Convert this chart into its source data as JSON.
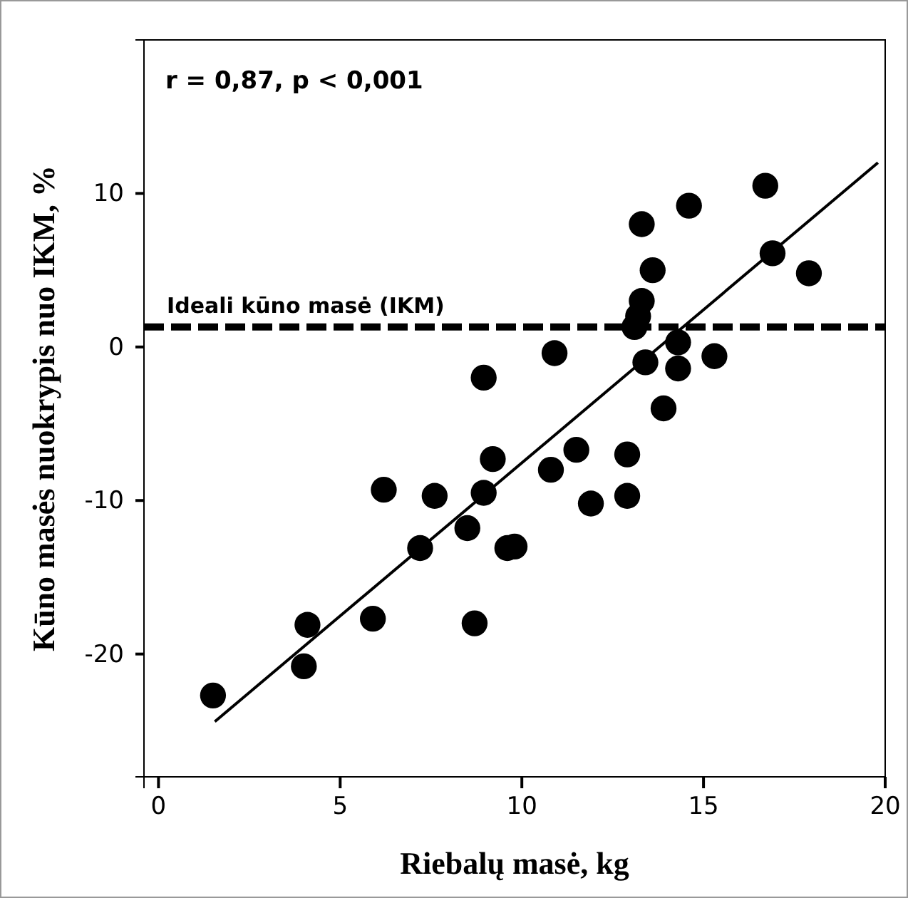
{
  "chart_data": {
    "type": "scatter",
    "xlabel": "Riebalų masė, kg",
    "ylabel": "Kūno masės nuokrypis nuo IKM, %",
    "annotations": [
      "r = 0,87, p < 0,001"
    ],
    "xlim": [
      -0.4,
      20
    ],
    "ylim": [
      -28,
      20
    ],
    "xticks": [
      0,
      5,
      10,
      15,
      20
    ],
    "yticks": [
      -20,
      -10,
      0,
      10
    ],
    "grid": false,
    "ref_lines": [
      {
        "axis": "y",
        "value": 1.3,
        "label": "Ideali kūno masė (IKM)",
        "color": "#000000",
        "line_style": "dashed"
      }
    ],
    "series": [
      {
        "color": "#000000",
        "marker": "circle",
        "x": [
          1.5,
          4.0,
          4.1,
          5.9,
          6.2,
          7.2,
          7.6,
          8.5,
          8.7,
          8.95,
          8.95,
          9.2,
          9.6,
          9.8,
          10.8,
          10.9,
          11.5,
          11.9,
          12.9,
          12.9,
          13.3,
          13.6,
          13.3,
          13.1,
          13.2,
          13.4,
          13.9,
          14.3,
          14.3,
          14.6,
          15.3,
          16.7,
          16.9,
          17.9
        ],
        "values": [
          -22.7,
          -20.8,
          -18.1,
          -17.7,
          -9.3,
          -13.1,
          -9.7,
          -11.8,
          -18,
          -9.5,
          -2.0,
          -7.3,
          -13.1,
          -13,
          -8.0,
          -0.4,
          -6.7,
          -10.2,
          -7.0,
          -9.7,
          8.0,
          5.0,
          3.0,
          1.3,
          2.0,
          -1.0,
          -4.0,
          0.3,
          -1.4,
          9.2,
          -0.6,
          10.5,
          6.1,
          4.8
        ]
      },
      {
        "type": "line",
        "color": "#000000",
        "marker": "none",
        "x": [
          1.55,
          19.8
        ],
        "values": [
          -24.4,
          12.0
        ]
      }
    ]
  }
}
